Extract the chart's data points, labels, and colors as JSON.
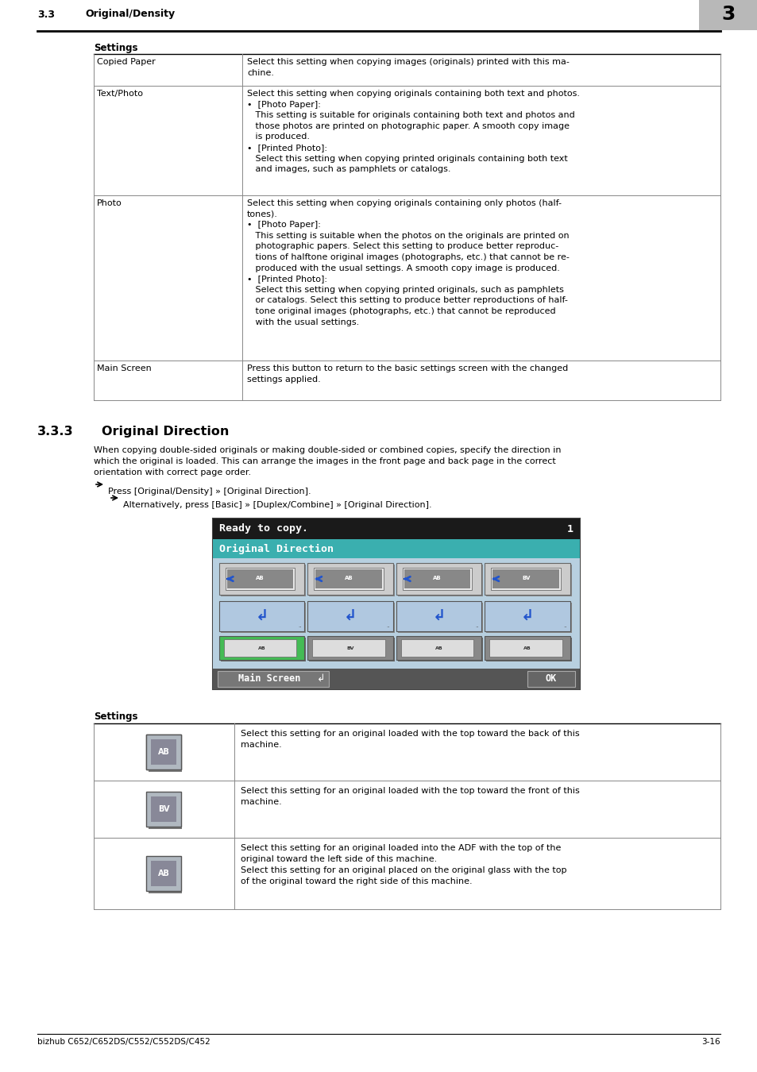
{
  "header_section": "3.3",
  "header_title": "Original/Density",
  "chapter_number": "3",
  "footer_left": "bizhub C652/C652DS/C552/C552DS/C452",
  "footer_right": "3-16",
  "table1_header": "Settings",
  "table1_rows": [
    {
      "col1": "Copied Paper",
      "col2": "Select this setting when copying images (originals) printed with this ma-\nchine."
    },
    {
      "col1": "Text/Photo",
      "col2": "Select this setting when copying originals containing both text and photos.\n•  [Photo Paper]:\n   This setting is suitable for originals containing both text and photos and\n   those photos are printed on photographic paper. A smooth copy image\n   is produced.\n•  [Printed Photo]:\n   Select this setting when copying printed originals containing both text\n   and images, such as pamphlets or catalogs."
    },
    {
      "col1": "Photo",
      "col2": "Select this setting when copying originals containing only photos (half-\ntones).\n•  [Photo Paper]:\n   This setting is suitable when the photos on the originals are printed on\n   photographic papers. Select this setting to produce better reproduc-\n   tions of halftone original images (photographs, etc.) that cannot be re-\n   produced with the usual settings. A smooth copy image is produced.\n•  [Printed Photo]:\n   Select this setting when copying printed originals, such as pamphlets\n   or catalogs. Select this setting to produce better reproductions of half-\n   tone original images (photographs, etc.) that cannot be reproduced\n   with the usual settings."
    },
    {
      "col1": "Main Screen",
      "col2": "Press this button to return to the basic settings screen with the changed\nsettings applied."
    }
  ],
  "section_number": "3.3.3",
  "section_title": "Original Direction",
  "section_body1": "When copying double-sided originals or making double-sided or combined copies, specify the direction in",
  "section_body2": "which the original is loaded. This can arrange the images in the front page and back page in the correct",
  "section_body3": "orientation with correct page order.",
  "arrow_text1": "Press [Original/Density] » [Original Direction].",
  "arrow_text2": "Alternatively, press [Basic] » [Duplex/Combine] » [Original Direction].",
  "screen_ready": "Ready to copy.",
  "screen_number": "1",
  "screen_title": "Original Direction",
  "main_screen_btn": "Main Screen",
  "ok_btn": "OK",
  "table2_header": "Settings",
  "table2_row1": "Select this setting for an original loaded with the top toward the back of this\nmachine.",
  "table2_row2": "Select this setting for an original loaded with the top toward the front of this\nmachine.",
  "table2_row3": "Select this setting for an original loaded into the ADF with the top of the\noriginal toward the left side of this machine.\nSelect this setting for an original placed on the original glass with the top\nof the original toward the right side of this machine.",
  "bg_color": "#ffffff"
}
